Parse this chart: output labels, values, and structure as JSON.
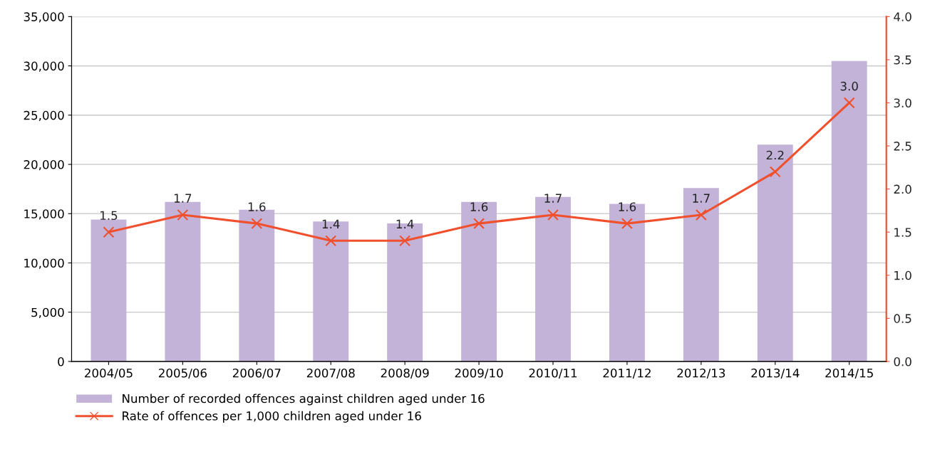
{
  "chart_data": {
    "type": "bar",
    "categories": [
      "2004/05",
      "2005/06",
      "2006/07",
      "2007/08",
      "2008/09",
      "2009/10",
      "2010/11",
      "2011/12",
      "2012/13",
      "2013/14",
      "2014/15"
    ],
    "series": [
      {
        "name": "Number of recorded offences against children aged under 16",
        "color": "#c3b3d9",
        "values": [
          14400,
          16200,
          15400,
          14200,
          14000,
          16200,
          16700,
          16000,
          17600,
          22000,
          30500
        ]
      },
      {
        "name": "Rate of offences per 1,000 children aged under 16",
        "type": "line",
        "axis": "y2",
        "color": "#f0502d",
        "marker": "cross",
        "values": [
          1.5,
          1.7,
          1.6,
          1.4,
          1.4,
          1.6,
          1.7,
          1.6,
          1.7,
          2.2,
          3.0
        ],
        "value_labels": [
          "1.5",
          "1.7",
          "1.6",
          "1.4",
          "1.4",
          "1.6",
          "1.7",
          "1.6",
          "1.7",
          "2.2",
          "3.0"
        ]
      }
    ],
    "ylim": [
      0,
      35000
    ],
    "yticks": [
      {
        "value": 0,
        "label": "0"
      },
      {
        "value": 5000,
        "label": "5,000"
      },
      {
        "value": 10000,
        "label": "10,000"
      },
      {
        "value": 15000,
        "label": "15,000"
      },
      {
        "value": 20000,
        "label": "20,000"
      },
      {
        "value": 25000,
        "label": "25,000"
      },
      {
        "value": 30000,
        "label": "30,000"
      },
      {
        "value": 35000,
        "label": "35,000"
      }
    ],
    "y2lim": [
      0,
      4
    ],
    "y2ticks": [
      {
        "value": 0,
        "label": "0.0"
      },
      {
        "value": 0.5,
        "label": "0.5"
      },
      {
        "value": 1,
        "label": "1.0"
      },
      {
        "value": 1.5,
        "label": "1.5"
      },
      {
        "value": 2,
        "label": "2.0"
      },
      {
        "value": 2.5,
        "label": "2.5"
      },
      {
        "value": 3,
        "label": "3.0"
      },
      {
        "value": 3.5,
        "label": "3.5"
      },
      {
        "value": 4,
        "label": "4.0"
      }
    ],
    "grid": "y",
    "legend": "bottom left"
  }
}
